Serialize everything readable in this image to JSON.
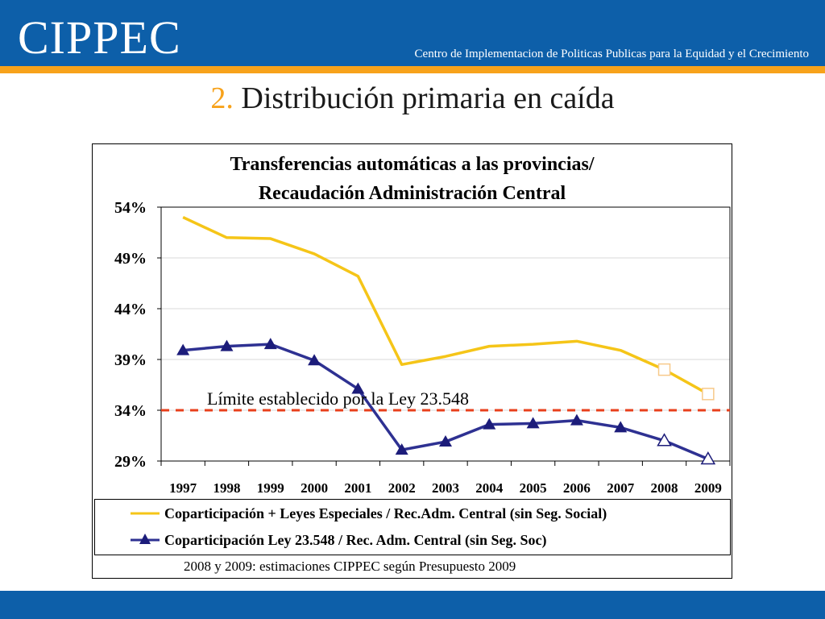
{
  "header": {
    "logo": "CIPPEC",
    "tagline": "Centro de Implementacion de Politicas Publicas para la Equidad y el Crecimiento"
  },
  "slide": {
    "number": "2.",
    "title": "Distribución primaria en caída"
  },
  "note": "2008 y 2009: estimaciones CIPPEC según Presupuesto 2009",
  "colors": {
    "header_blue": "#0d5fa9",
    "accent_orange": "#f7a21b",
    "series_yellow": "#f5c518",
    "series_navy": "#2e3192",
    "marker_navy": "#1c1c7a",
    "limit_red": "#e8401c"
  },
  "chart_data": {
    "type": "line",
    "title_line1": "Transferencias automáticas a las provincias/",
    "title_line2": "Recaudación Administración Central",
    "categories": [
      "1997",
      "1998",
      "1999",
      "2000",
      "2001",
      "2002",
      "2003",
      "2004",
      "2005",
      "2006",
      "2007",
      "2008",
      "2009"
    ],
    "y_ticks": [
      "54%",
      "49%",
      "44%",
      "39%",
      "34%",
      "29%"
    ],
    "y_tick_values": [
      54,
      49,
      44,
      39,
      34,
      29
    ],
    "ylim": [
      29,
      54
    ],
    "grid": "horizontal",
    "estimated_from_index": 11,
    "series": [
      {
        "name": "Coparticipación + Leyes Especiales / Rec.Adm. Central (sin Seg. Social)",
        "values": [
          53.0,
          51.0,
          50.9,
          49.4,
          47.2,
          38.5,
          39.3,
          40.3,
          40.5,
          40.8,
          39.9,
          38.0,
          35.6
        ],
        "color": "#f5c518",
        "marker": "none (estimates: open square)"
      },
      {
        "name": "Coparticipación Ley 23.548 / Rec. Adm. Central (sin Seg. Soc)",
        "values": [
          39.9,
          40.3,
          40.5,
          38.9,
          36.1,
          30.1,
          30.9,
          32.6,
          32.7,
          33.0,
          32.3,
          31.0,
          29.2
        ],
        "color": "#2e3192",
        "marker": "filled triangle (estimates: open triangle)"
      }
    ],
    "reference_line": {
      "value": 34.0,
      "label": "Límite establecido por la Ley 23.548",
      "style": "dashed",
      "color": "#e8401c"
    }
  }
}
